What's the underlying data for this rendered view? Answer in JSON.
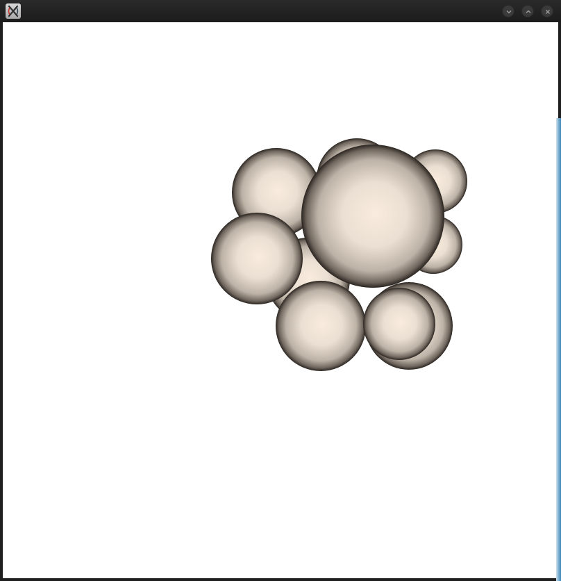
{
  "window": {
    "title": "",
    "buttons": {
      "minimize": "chevron-down-icon",
      "maximize": "chevron-up-icon",
      "close": "close-icon"
    }
  },
  "scene": {
    "background": "#ffffff",
    "sphere_color": "#f6e9dc",
    "shadow_color": "#2a241f",
    "sphere_count": 11
  }
}
